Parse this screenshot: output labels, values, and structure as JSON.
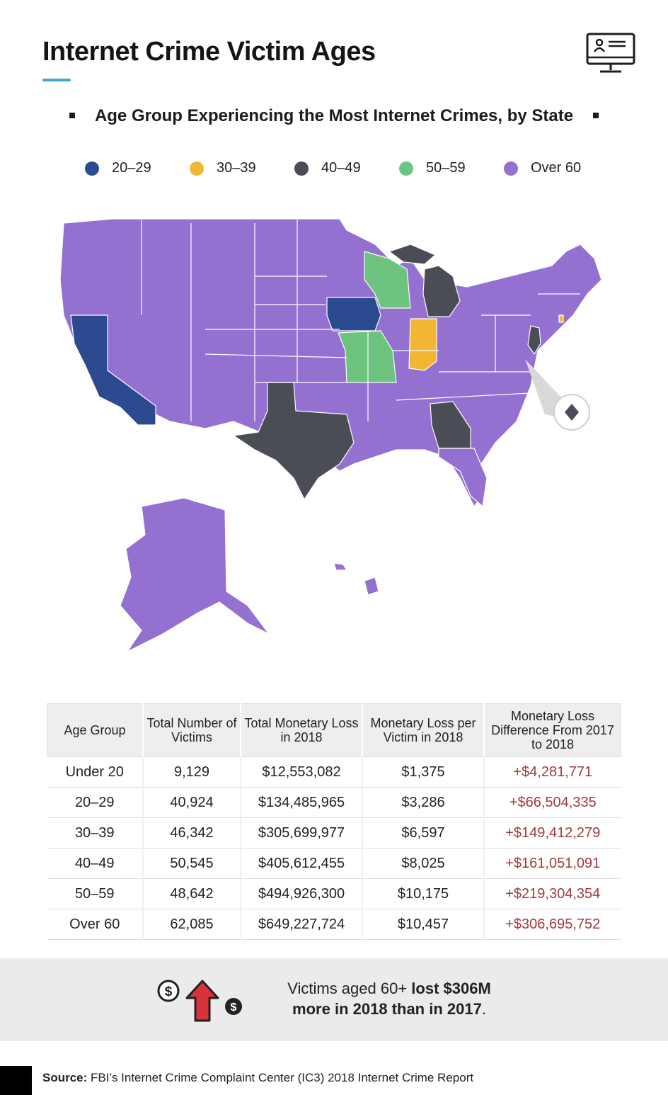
{
  "title": "Internet Crime Victim Ages",
  "subtitle": "Age Group Experiencing the Most Internet Crimes, by State",
  "legend": [
    {
      "label": "20–29",
      "color": "#2b4a8f"
    },
    {
      "label": "30–39",
      "color": "#f2b632"
    },
    {
      "label": "40–49",
      "color": "#4a4d55"
    },
    {
      "label": "50–59",
      "color": "#6cc47f"
    },
    {
      "label": "Over 60",
      "color": "#9470d0"
    }
  ],
  "map_data": {
    "type": "choropleth",
    "states_by_group": {
      "20–29": [
        "California",
        "Iowa"
      ],
      "30–39": [
        "Indiana",
        "Rhode Island"
      ],
      "40–49": [
        "Texas",
        "Georgia",
        "Michigan",
        "New Jersey"
      ],
      "50–59": [
        "Wisconsin",
        "Missouri"
      ],
      "Over 60": [
        "All other states",
        "Alaska",
        "Hawaii",
        "District of Columbia"
      ]
    }
  },
  "table": {
    "headers": [
      "Age Group",
      "Total Number of Victims",
      "Total Monetary Loss in 2018",
      "Monetary Loss per Victim in 2018",
      "Monetary Loss Difference From 2017 to 2018"
    ],
    "rows": [
      [
        "Under 20",
        "9,129",
        "$12,553,082",
        "$1,375",
        "+$4,281,771"
      ],
      [
        "20–29",
        "40,924",
        "$134,485,965",
        "$3,286",
        "+$66,504,335"
      ],
      [
        "30–39",
        "46,342",
        "$305,699,977",
        "$6,597",
        "+$149,412,279"
      ],
      [
        "40–49",
        "50,545",
        "$405,612,455",
        "$8,025",
        "+$161,051,091"
      ],
      [
        "50–59",
        "48,642",
        "$494,926,300",
        "$10,175",
        "+$219,304,354"
      ],
      [
        "Over 60",
        "62,085",
        "$649,227,724",
        "$10,457",
        "+$306,695,752"
      ]
    ]
  },
  "callout": {
    "line1_normal": "Victims aged 60+ ",
    "line1_bold": "lost $306M",
    "line2_bold": "more in 2018 than in 2017",
    "line2_end": "."
  },
  "icons": [
    "monitor-user-icon",
    "dollar-coin-icon",
    "up-arrow-icon",
    "dc-marker-icon"
  ],
  "source": {
    "label": "Source:",
    "text": " FBI’s Internet Crime Complaint Center (IC3) 2018 Internet Crime Report"
  }
}
